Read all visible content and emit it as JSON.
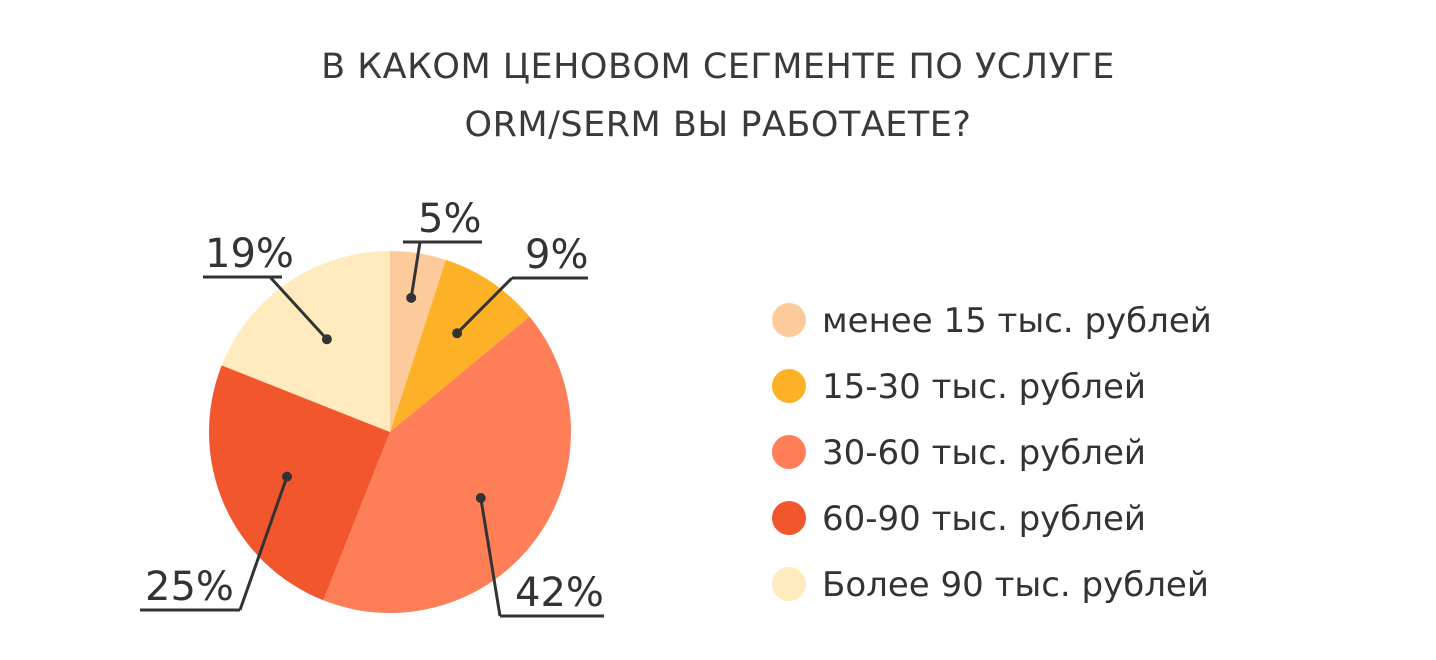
{
  "chart_data": {
    "type": "pie",
    "title_lines": [
      "В КАКОМ ЦЕНОВОМ СЕГМЕНТЕ ПО УСЛУГЕ",
      "ORM/SERM ВЫ РАБОТАЕТЕ?"
    ],
    "slices": [
      {
        "label": "менее 15 тыс. рублей",
        "value": 5,
        "display": "5%",
        "color": "#FDCB9B"
      },
      {
        "label": "15-30 тыс. рублей",
        "value": 9,
        "display": "9%",
        "color": "#FDB127"
      },
      {
        "label": "30-60 тыс. рублей",
        "value": 42,
        "display": "42%",
        "color": "#FE7E58"
      },
      {
        "label": "60-90 тыс. рублей",
        "value": 25,
        "display": "25%",
        "color": "#F2562D"
      },
      {
        "label": "Более 90 тыс. рублей",
        "value": 19,
        "display": "19%",
        "color": "#FFEBBE"
      }
    ],
    "legend_position": "right"
  }
}
